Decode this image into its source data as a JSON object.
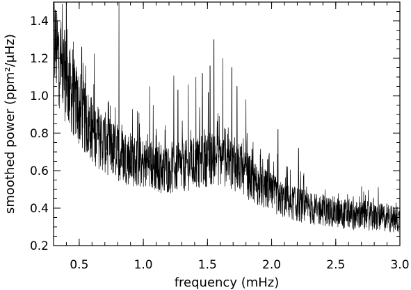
{
  "chart_data": {
    "type": "line",
    "xlabel": "frequency (mHz)",
    "ylabel": "smoothed power (ppm²/μHz)",
    "xlim": [
      0.3,
      3.0
    ],
    "ylim": [
      0.2,
      1.5
    ],
    "x_ticks": [
      {
        "value": 0.5,
        "label": "0.5"
      },
      {
        "value": 1.0,
        "label": "1.0"
      },
      {
        "value": 1.5,
        "label": "1.5"
      },
      {
        "value": 2.0,
        "label": "2.0"
      },
      {
        "value": 2.5,
        "label": "2.5"
      },
      {
        "value": 3.0,
        "label": "3.0"
      }
    ],
    "y_ticks": [
      {
        "value": 0.2,
        "label": "0.2"
      },
      {
        "value": 0.4,
        "label": "0.4"
      },
      {
        "value": 0.6,
        "label": "0.6"
      },
      {
        "value": 0.8,
        "label": "0.8"
      },
      {
        "value": 1.0,
        "label": "1.0"
      },
      {
        "value": 1.2,
        "label": "1.2"
      },
      {
        "value": 1.4,
        "label": "1.4"
      }
    ],
    "grid": false,
    "line_color": "#000000",
    "series": [
      {
        "x": [
          0.3,
          0.35,
          0.4,
          0.45,
          0.5,
          0.55,
          0.6,
          0.65,
          0.7,
          0.75,
          0.8,
          0.85,
          0.9,
          0.95,
          1.0,
          1.05,
          1.1,
          1.15,
          1.2,
          1.25,
          1.3,
          1.35,
          1.4,
          1.45,
          1.5,
          1.55,
          1.6,
          1.65,
          1.7,
          1.75,
          1.8,
          1.85,
          1.9,
          1.95,
          2.0,
          2.05,
          2.1,
          2.15,
          2.2,
          2.25,
          2.3,
          2.35,
          2.4,
          2.45,
          2.5,
          2.55,
          2.6,
          2.65,
          2.7,
          2.75,
          2.8,
          2.85,
          2.9,
          2.95,
          3.0
        ],
        "y_baseline": [
          1.3,
          1.18,
          1.08,
          1.0,
          0.93,
          0.87,
          0.82,
          0.78,
          0.75,
          0.72,
          0.7,
          0.68,
          0.66,
          0.65,
          0.64,
          0.63,
          0.62,
          0.61,
          0.61,
          0.61,
          0.62,
          0.63,
          0.64,
          0.65,
          0.66,
          0.67,
          0.66,
          0.65,
          0.63,
          0.61,
          0.58,
          0.55,
          0.52,
          0.5,
          0.48,
          0.46,
          0.44,
          0.43,
          0.42,
          0.41,
          0.4,
          0.39,
          0.39,
          0.38,
          0.38,
          0.37,
          0.37,
          0.36,
          0.36,
          0.36,
          0.35,
          0.35,
          0.35,
          0.34,
          0.34
        ],
        "peaks": [
          {
            "x": 0.4,
            "y": 1.52
          },
          {
            "x": 0.52,
            "y": 1.26
          },
          {
            "x": 0.81,
            "y": 1.5
          },
          {
            "x": 1.05,
            "y": 1.05
          },
          {
            "x": 1.27,
            "y": 1.03
          },
          {
            "x": 1.35,
            "y": 1.06
          },
          {
            "x": 1.41,
            "y": 1.1
          },
          {
            "x": 1.46,
            "y": 1.12
          },
          {
            "x": 1.52,
            "y": 1.16
          },
          {
            "x": 1.55,
            "y": 1.3
          },
          {
            "x": 1.62,
            "y": 1.2
          },
          {
            "x": 1.69,
            "y": 1.15
          },
          {
            "x": 1.73,
            "y": 1.05
          },
          {
            "x": 1.8,
            "y": 0.98
          },
          {
            "x": 2.05,
            "y": 0.82
          },
          {
            "x": 2.21,
            "y": 0.72
          },
          {
            "x": 2.97,
            "y": 0.43
          }
        ]
      }
    ]
  }
}
